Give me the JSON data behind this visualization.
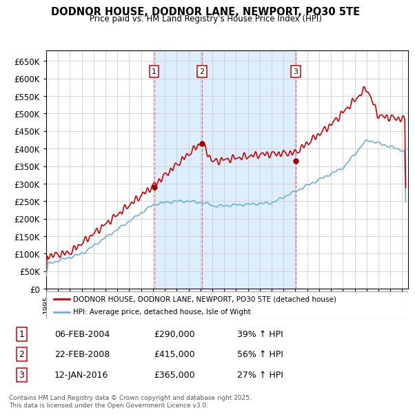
{
  "title": "DODNOR HOUSE, DODNOR LANE, NEWPORT, PO30 5TE",
  "subtitle": "Price paid vs. HM Land Registry's House Price Index (HPI)",
  "ylim": [
    0,
    680000
  ],
  "yticks": [
    0,
    50000,
    100000,
    150000,
    200000,
    250000,
    300000,
    350000,
    400000,
    450000,
    500000,
    550000,
    600000,
    650000
  ],
  "ytick_labels": [
    "£0",
    "£50K",
    "£100K",
    "£150K",
    "£200K",
    "£250K",
    "£300K",
    "£350K",
    "£400K",
    "£450K",
    "£500K",
    "£550K",
    "£600K",
    "£650K"
  ],
  "xlim_start": 1995.0,
  "xlim_end": 2025.5,
  "sale_dates": [
    2004.093,
    2008.137,
    2016.036
  ],
  "sale_prices": [
    290000,
    415000,
    365000
  ],
  "sale_labels": [
    "1",
    "2",
    "3"
  ],
  "legend_line1": "DODNOR HOUSE, DODNOR LANE, NEWPORT, PO30 5TE (detached house)",
  "legend_line2": "HPI: Average price, detached house, Isle of Wight",
  "table_rows": [
    [
      "1",
      "06-FEB-2004",
      "£290,000",
      "39% ↑ HPI"
    ],
    [
      "2",
      "22-FEB-2008",
      "£415,000",
      "56% ↑ HPI"
    ],
    [
      "3",
      "12-JAN-2016",
      "£365,000",
      "27% ↑ HPI"
    ]
  ],
  "footer": "Contains HM Land Registry data © Crown copyright and database right 2025.\nThis data is licensed under the Open Government Licence v3.0.",
  "hpi_color": "#6baed6",
  "price_color": "#cc0000",
  "vline_color": "#ee6666",
  "shade_color": "#ddeeff",
  "grid_color": "#cccccc"
}
